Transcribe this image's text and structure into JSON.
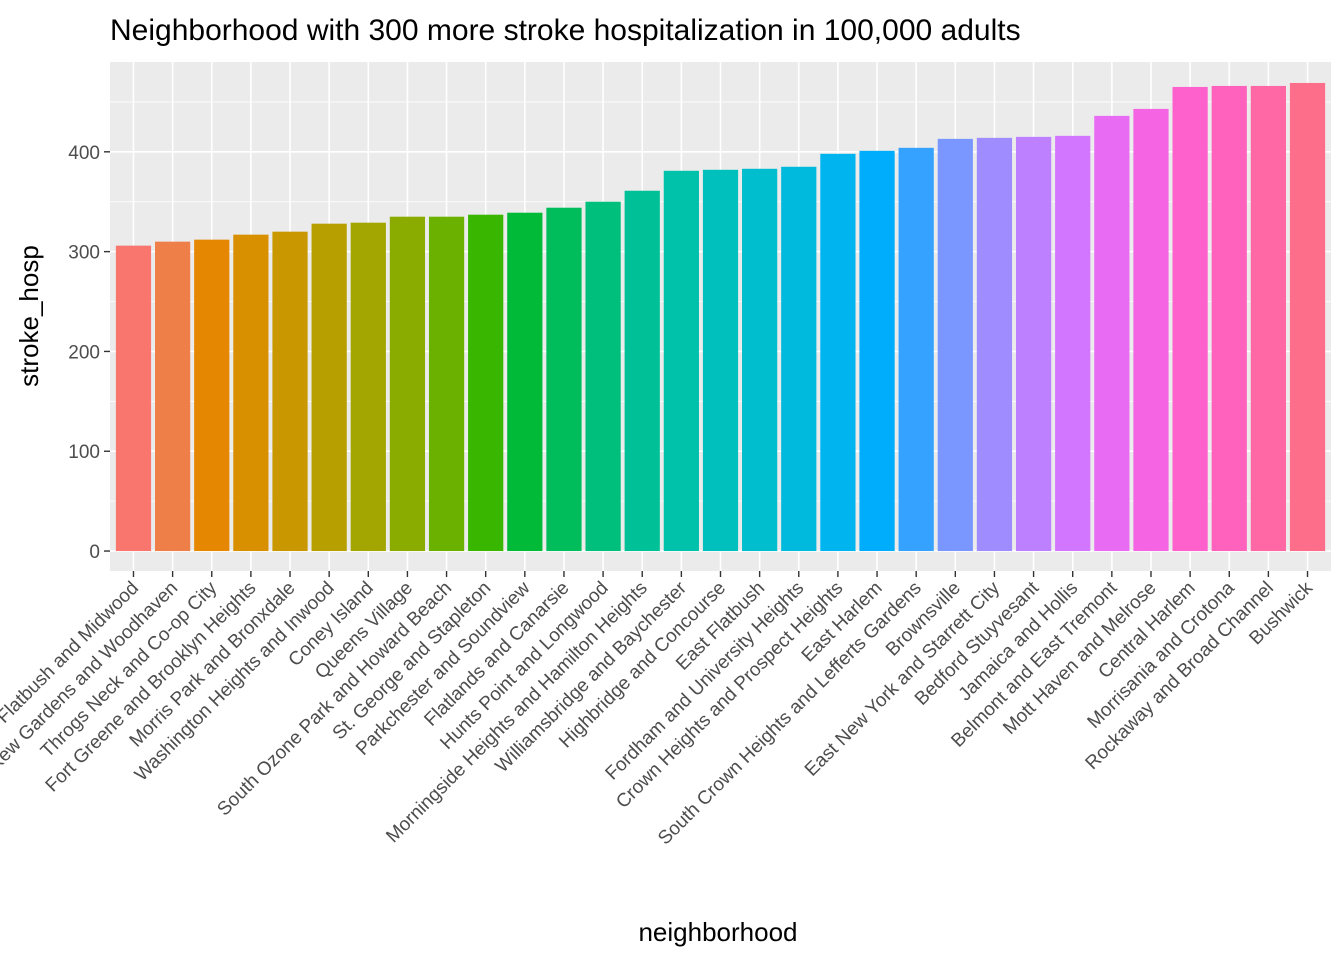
{
  "chart_data": {
    "type": "bar",
    "title": "Neighborhood with 300 more stroke hospitalization in 100,000 adults",
    "xlabel": "neighborhood",
    "ylabel": "stroke_hosp",
    "ylim": [
      -20,
      490
    ],
    "yticks": [
      0,
      100,
      200,
      300,
      400
    ],
    "grid": true,
    "legend": "none",
    "categories": [
      "Flatbush and Midwood",
      "Kew Gardens and Woodhaven",
      "Throgs Neck and Co-op City",
      "Fort Greene and Brooklyn Heights",
      "Morris Park and Bronxdale",
      "Washington Heights and Inwood",
      "Coney Island",
      "Queens Village",
      "South Ozone Park and Howard Beach",
      "St. George and Stapleton",
      "Parkchester and Soundview",
      "Flatlands and Canarsie",
      "Hunts Point and Longwood",
      "Morningside Heights and Hamilton Heights",
      "Williamsbridge and Baychester",
      "Highbridge and Concourse",
      "East Flatbush",
      "Fordham and University Heights",
      "Crown Heights and Prospect Heights",
      "East Harlem",
      "South Crown Heights and Lefferts Gardens",
      "Brownsville",
      "East New York and Starrett City",
      "Bedford Stuyvesant",
      "Jamaica and Hollis",
      "Belmont and East Tremont",
      "Mott Haven and Melrose",
      "Central Harlem",
      "Morrisania and Crotona",
      "Rockaway and Broad Channel",
      "Bushwick"
    ],
    "values": [
      306,
      310,
      312,
      317,
      320,
      328,
      329,
      335,
      335,
      337,
      339,
      344,
      350,
      361,
      381,
      382,
      383,
      385,
      398,
      401,
      404,
      413,
      414,
      415,
      416,
      436,
      443,
      465,
      466,
      466,
      469
    ],
    "colors": [
      "#F8766D",
      "#EF7F49",
      "#E58700",
      "#D89000",
      "#C99800",
      "#B79F00",
      "#A3A500",
      "#8AAB00",
      "#6BB100",
      "#39B600",
      "#00BA38",
      "#00BD5C",
      "#00BF7D",
      "#00C097",
      "#00C1AA",
      "#00C0BE",
      "#00BECE",
      "#00BADE",
      "#00B4EF",
      "#00ACFC",
      "#35A2FF",
      "#7997FF",
      "#9F8CFF",
      "#BD81FF",
      "#D376FF",
      "#E76BF3",
      "#F564E3",
      "#FF61CC",
      "#FF62BC",
      "#FF67A5",
      "#FD6E8B"
    ]
  }
}
